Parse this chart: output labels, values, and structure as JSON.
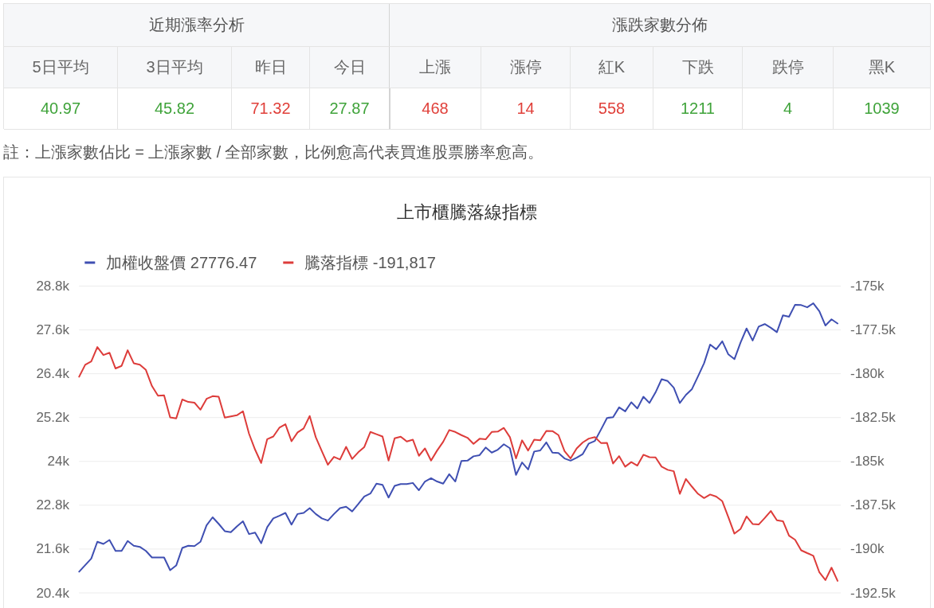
{
  "chart_data": [
    {
      "type": "other",
      "title": "近期漲率分析",
      "categories": [
        "5日平均",
        "3日平均",
        "昨日",
        "今日"
      ],
      "series": [
        {
          "color": "#3fa33a",
          "values": [
            40.97,
            45.82,
            null,
            27.87
          ]
        },
        {
          "color": "#e0403a",
          "values": [
            null,
            null,
            71.32,
            null
          ]
        }
      ],
      "data_labels": true,
      "annotations": [
        "註：上漲家數佔比 = 上漲家數 / 全部家數，比例愈高代表買進股票勝率愈高。"
      ]
    },
    {
      "type": "other",
      "title": "漲跌家數分佈",
      "categories": [
        "上漲",
        "漲停",
        "紅K",
        "下跌",
        "跌停",
        "黑K"
      ],
      "series": [
        {
          "color": "#e0403a",
          "values": [
            468,
            14,
            558,
            null,
            null,
            null
          ]
        },
        {
          "color": "#3fa33a",
          "values": [
            null,
            null,
            null,
            1211,
            4,
            1039
          ]
        }
      ],
      "data_labels": true
    },
    {
      "type": "line",
      "title": "上市櫃騰落線指標",
      "categories": [
        null,
        null,
        null,
        null,
        null,
        null,
        null,
        null,
        null,
        null,
        null,
        null,
        null,
        null,
        null,
        null,
        null,
        null,
        null,
        null,
        null,
        null,
        null,
        null,
        null,
        null,
        null,
        null,
        null,
        null,
        null,
        null,
        null,
        null,
        null,
        null,
        null,
        null,
        null,
        null,
        null,
        null,
        null,
        null,
        null,
        null,
        null,
        null,
        null,
        null,
        null,
        null,
        null,
        null,
        null,
        null,
        null,
        null,
        null,
        null,
        null,
        null,
        null,
        null,
        null,
        null,
        null,
        null,
        null,
        null,
        null,
        null,
        null,
        null,
        null,
        null,
        null,
        null,
        null,
        null,
        null,
        null,
        null,
        null,
        null,
        null,
        null,
        null,
        null,
        null,
        null,
        null,
        null,
        null,
        null,
        null,
        null,
        null,
        null,
        null,
        null,
        null,
        null,
        null,
        null,
        null,
        null,
        null,
        null,
        null,
        null,
        null,
        null,
        null,
        null,
        null,
        null,
        null,
        null,
        null,
        null,
        null,
        null,
        null,
        null,
        null
      ],
      "series": [
        {
          "name": "加權收盤價 27776.47",
          "color": "#3f4fb2",
          "values": [
            20980,
            21160,
            21340,
            21800,
            21740,
            21850,
            21550,
            21550,
            21820,
            21690,
            21660,
            21550,
            21370,
            21370,
            21370,
            21020,
            21150,
            21630,
            21690,
            21680,
            21800,
            22250,
            22470,
            22290,
            22090,
            22060,
            22220,
            22360,
            22010,
            22050,
            21760,
            22200,
            22440,
            22510,
            22590,
            22270,
            22560,
            22590,
            22720,
            22560,
            22440,
            22380,
            22560,
            22720,
            22760,
            22630,
            22830,
            23040,
            23120,
            23390,
            23360,
            23010,
            23330,
            23380,
            23380,
            23410,
            23210,
            23450,
            23540,
            23450,
            23390,
            23650,
            23450,
            24010,
            24020,
            24140,
            24170,
            24380,
            24240,
            24320,
            24470,
            24360,
            23630,
            23970,
            23780,
            24270,
            24300,
            24520,
            24240,
            24230,
            24080,
            24020,
            24100,
            24200,
            24490,
            24560,
            24870,
            25190,
            25210,
            25480,
            25370,
            25620,
            25450,
            25770,
            25600,
            25890,
            26250,
            26200,
            26020,
            25600,
            25820,
            25980,
            26330,
            26690,
            27200,
            27070,
            27290,
            26930,
            26800,
            27250,
            27640,
            27310,
            27690,
            27760,
            27660,
            27540,
            28000,
            27960,
            28290,
            28280,
            28220,
            28330,
            28110,
            27720,
            27890,
            27776.47
          ]
        },
        {
          "name": "騰落指標 -191,817",
          "color": "#dd3c3a",
          "axis": "y2",
          "values": [
            -180170,
            -179490,
            -179300,
            -178480,
            -178930,
            -178800,
            -179700,
            -179550,
            -178660,
            -179400,
            -179480,
            -179780,
            -180700,
            -181250,
            -181230,
            -182490,
            -182550,
            -181470,
            -181610,
            -181650,
            -182050,
            -181430,
            -181280,
            -181310,
            -182500,
            -182430,
            -182370,
            -182140,
            -183420,
            -184330,
            -185090,
            -183730,
            -183580,
            -183080,
            -182880,
            -183850,
            -183350,
            -183120,
            -182410,
            -183620,
            -184410,
            -185190,
            -184740,
            -184890,
            -184170,
            -184860,
            -184480,
            -184180,
            -183320,
            -183450,
            -183580,
            -184950,
            -183680,
            -183590,
            -183860,
            -183760,
            -184680,
            -184260,
            -184950,
            -184380,
            -183880,
            -183210,
            -183320,
            -183500,
            -183650,
            -184000,
            -183710,
            -183740,
            -183320,
            -183300,
            -183090,
            -183620,
            -184830,
            -183800,
            -184380,
            -183760,
            -183800,
            -183260,
            -183270,
            -183500,
            -184410,
            -184830,
            -184260,
            -183920,
            -183700,
            -183610,
            -183950,
            -183940,
            -185120,
            -184700,
            -185300,
            -185040,
            -185240,
            -184620,
            -184760,
            -184770,
            -185300,
            -185480,
            -185560,
            -186850,
            -186000,
            -186440,
            -186850,
            -187090,
            -186890,
            -187010,
            -187270,
            -188180,
            -189120,
            -188860,
            -188140,
            -188570,
            -188600,
            -188230,
            -187830,
            -188360,
            -188410,
            -189240,
            -189470,
            -190070,
            -190230,
            -190380,
            -191330,
            -191770,
            -191060,
            -191817
          ]
        }
      ],
      "ylim": [
        20400,
        28800
      ],
      "yticks": [
        {
          "value": 20400,
          "label": "20.4k"
        },
        {
          "value": 21600,
          "label": "21.6k"
        },
        {
          "value": 22800,
          "label": "22.8k"
        },
        {
          "value": 24000,
          "label": "24k"
        },
        {
          "value": 25200,
          "label": "25.2k"
        },
        {
          "value": 26400,
          "label": "26.4k"
        },
        {
          "value": 27600,
          "label": "27.6k"
        },
        {
          "value": 28800,
          "label": "28.8k"
        }
      ],
      "y2lim": [
        -192500,
        -175000
      ],
      "y2ticks": [
        {
          "value": -192500,
          "label": "-192.5k"
        },
        {
          "value": -190000,
          "label": "-190k"
        },
        {
          "value": -187500,
          "label": "-187.5k"
        },
        {
          "value": -185000,
          "label": "-185k"
        },
        {
          "value": -182500,
          "label": "-182.5k"
        },
        {
          "value": -180000,
          "label": "-180k"
        },
        {
          "value": -177500,
          "label": "-177.5k"
        },
        {
          "value": -175000,
          "label": "-175k"
        }
      ],
      "grid": "y",
      "legend": "top left"
    }
  ]
}
